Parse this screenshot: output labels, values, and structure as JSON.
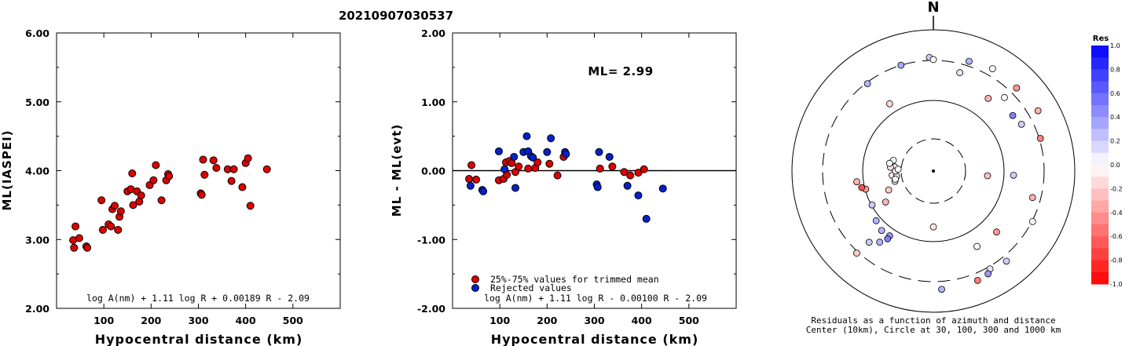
{
  "title": "20210907030537",
  "colors": {
    "red": "#dd0000",
    "blue": "#0022cc",
    "edge": "#000000"
  },
  "chart_data": [
    {
      "type": "scatter",
      "xlabel": "Hypocentral distance (km)",
      "ylabel": "ML(IASPEI)",
      "xlim": [
        0,
        600
      ],
      "ylim": [
        2.0,
        6.0
      ],
      "xticks": [
        "100",
        "200",
        "300",
        "400",
        "500"
      ],
      "yticks": [
        "2.00",
        "3.00",
        "4.00",
        "5.00",
        "6.00"
      ],
      "formula": "log A(nm) + 1.11 log R + 0.00189 R - 2.09",
      "points": [
        [
          35,
          2.99
        ],
        [
          37,
          2.88
        ],
        [
          40,
          3.19
        ],
        [
          48,
          3.02
        ],
        [
          63,
          2.9
        ],
        [
          65,
          2.88
        ],
        [
          95,
          3.57
        ],
        [
          98,
          3.14
        ],
        [
          110,
          3.22
        ],
        [
          115,
          3.19
        ],
        [
          118,
          3.44
        ],
        [
          123,
          3.49
        ],
        [
          130,
          3.14
        ],
        [
          133,
          3.33
        ],
        [
          136,
          3.41
        ],
        [
          150,
          3.7
        ],
        [
          157,
          3.73
        ],
        [
          160,
          3.96
        ],
        [
          162,
          3.5
        ],
        [
          170,
          3.7
        ],
        [
          175,
          3.55
        ],
        [
          179,
          3.64
        ],
        [
          197,
          3.79
        ],
        [
          205,
          3.86
        ],
        [
          210,
          4.08
        ],
        [
          222,
          3.57
        ],
        [
          232,
          3.86
        ],
        [
          236,
          3.95
        ],
        [
          238,
          3.92
        ],
        [
          305,
          3.67
        ],
        [
          307,
          3.65
        ],
        [
          310,
          4.16
        ],
        [
          313,
          3.94
        ],
        [
          332,
          4.15
        ],
        [
          338,
          4.04
        ],
        [
          362,
          4.02
        ],
        [
          370,
          3.85
        ],
        [
          375,
          4.02
        ],
        [
          393,
          3.76
        ],
        [
          400,
          4.11
        ],
        [
          405,
          4.18
        ],
        [
          410,
          3.49
        ],
        [
          445,
          4.02
        ]
      ]
    },
    {
      "type": "scatter",
      "xlabel": "Hypocentral distance (km)",
      "ylabel": "ML - ML(evt)",
      "xlim": [
        0,
        600
      ],
      "ylim": [
        -2.0,
        2.0
      ],
      "xticks": [
        "100",
        "200",
        "300",
        "400",
        "500"
      ],
      "yticks": [
        "-2.00",
        "-1.00",
        "0.00",
        "1.00",
        "2.00"
      ],
      "ml_label": "ML= 2.99",
      "zero_line": 0,
      "formula": "log A(nm) + 1.11 log R - 0.00100 R - 2.09",
      "series": [
        {
          "name": "25%-75% values for trimmed mean",
          "color": "red",
          "points": [
            [
              35,
              -0.12
            ],
            [
              40,
              0.08
            ],
            [
              50,
              -0.13
            ],
            [
              98,
              -0.14
            ],
            [
              108,
              -0.12
            ],
            [
              113,
              0.12
            ],
            [
              115,
              -0.06
            ],
            [
              120,
              0.14
            ],
            [
              125,
              0.11
            ],
            [
              133,
              -0.02
            ],
            [
              140,
              0.06
            ],
            [
              160,
              0.03
            ],
            [
              175,
              0.04
            ],
            [
              180,
              0.12
            ],
            [
              205,
              0.1
            ],
            [
              222,
              -0.07
            ],
            [
              235,
              0.2
            ],
            [
              312,
              0.03
            ],
            [
              338,
              0.06
            ],
            [
              363,
              -0.02
            ],
            [
              376,
              -0.07
            ],
            [
              393,
              -0.03
            ],
            [
              405,
              0.02
            ]
          ]
        },
        {
          "name": "Rejected values",
          "color": "blue",
          "points": [
            [
              38,
              -0.22
            ],
            [
              63,
              -0.28
            ],
            [
              65,
              -0.3
            ],
            [
              98,
              0.28
            ],
            [
              110,
              0.02
            ],
            [
              130,
              0.2
            ],
            [
              133,
              -0.25
            ],
            [
              150,
              0.27
            ],
            [
              157,
              0.5
            ],
            [
              160,
              0.28
            ],
            [
              166,
              0.21
            ],
            [
              170,
              0.19
            ],
            [
              200,
              0.27
            ],
            [
              208,
              0.47
            ],
            [
              238,
              0.27
            ],
            [
              240,
              0.24
            ],
            [
              305,
              -0.2
            ],
            [
              307,
              -0.24
            ],
            [
              310,
              0.27
            ],
            [
              332,
              0.2
            ],
            [
              370,
              -0.22
            ],
            [
              393,
              -0.36
            ],
            [
              410,
              -0.7
            ],
            [
              445,
              -0.26
            ]
          ]
        }
      ]
    },
    {
      "type": "polar-scatter",
      "compass_label": "N",
      "caption_line1": "Residuals as a function of azimuth and distance",
      "caption_line2": "Center (10km), Circle at 30, 100, 300 and 1000 km",
      "colorbar": {
        "title": "Res",
        "ticks": [
          "1.0",
          "0.8",
          "0.6",
          "0.4",
          "0.2",
          "0.0",
          "-0.2",
          "-0.4",
          "-0.6",
          "-0.8",
          "-1.0"
        ]
      },
      "points": [
        {
          "az": 358,
          "dist": 338,
          "res": 0.2
        },
        {
          "az": 0,
          "dist": 310,
          "res": 0.0
        },
        {
          "az": 15,
          "dist": 236,
          "res": 0.1
        },
        {
          "az": 18,
          "dist": 362,
          "res": 0.3
        },
        {
          "az": 30,
          "dist": 405,
          "res": 0.0
        },
        {
          "az": 37,
          "dist": 175,
          "res": -0.3
        },
        {
          "az": 44,
          "dist": 238,
          "res": 0.0
        },
        {
          "az": 45,
          "dist": 393,
          "res": -0.4
        },
        {
          "az": 55,
          "dist": 205,
          "res": 0.5
        },
        {
          "az": 60,
          "dist": 445,
          "res": -0.3
        },
        {
          "az": 62,
          "dist": 222,
          "res": 0.2
        },
        {
          "az": 73,
          "dist": 313,
          "res": -0.5
        },
        {
          "az": 93,
          "dist": 130,
          "res": 0.2
        },
        {
          "az": 105,
          "dist": 240,
          "res": -0.3
        },
        {
          "az": 117,
          "dist": 307,
          "res": 0.0
        },
        {
          "az": 150,
          "dist": 157,
          "res": 0.0
        },
        {
          "az": 134,
          "dist": 160,
          "res": -0.4
        },
        {
          "az": 180,
          "dist": 63,
          "res": -0.1
        },
        {
          "az": 141,
          "dist": 370,
          "res": 0.2
        },
        {
          "az": 150,
          "dist": 330,
          "res": 0.1
        },
        {
          "az": 152,
          "dist": 376,
          "res": 0.4
        },
        {
          "az": 158,
          "dist": 400,
          "res": -0.5
        },
        {
          "az": 176,
          "dist": 410,
          "res": 0.3
        },
        {
          "az": 214,
          "dist": 123,
          "res": 0.4
        },
        {
          "az": 214,
          "dist": 136,
          "res": 0.5
        },
        {
          "az": 221,
          "dist": 125,
          "res": 0.3
        },
        {
          "az": 217,
          "dist": 166,
          "res": 0.3
        },
        {
          "az": 229,
          "dist": 115,
          "res": 0.3
        },
        {
          "az": 222,
          "dist": 200,
          "res": 0.2
        },
        {
          "az": 223,
          "dist": 320,
          "res": -0.2
        },
        {
          "az": 237,
          "dist": 65,
          "res": -0.3
        },
        {
          "az": 241,
          "dist": 98,
          "res": 0.2
        },
        {
          "az": 247,
          "dist": 50,
          "res": -0.2
        },
        {
          "az": 255,
          "dist": 38,
          "res": 0.1
        },
        {
          "az": 264,
          "dist": 40,
          "res": -0.1
        },
        {
          "az": 262,
          "dist": 35,
          "res": 0.1
        },
        {
          "az": 258,
          "dist": 37,
          "res": 0.0
        },
        {
          "az": 276,
          "dist": 37,
          "res": 0.0
        },
        {
          "az": 285,
          "dist": 40,
          "res": 0.0
        },
        {
          "az": 275,
          "dist": 42,
          "res": -0.1
        },
        {
          "az": 270,
          "dist": 36,
          "res": -0.1
        },
        {
          "az": 255,
          "dist": 98,
          "res": -0.4
        },
        {
          "az": 257,
          "dist": 108,
          "res": -0.7
        },
        {
          "az": 262,
          "dist": 120,
          "res": -0.3
        },
        {
          "az": 280,
          "dist": 44,
          "res": 0.0
        },
        {
          "az": 273,
          "dist": 33,
          "res": 0.0
        },
        {
          "az": 95,
          "dist": 60,
          "res": -0.25
        },
        {
          "az": 327,
          "dist": 130,
          "res": -0.15
        },
        {
          "az": 323,
          "dist": 290,
          "res": 0.3
        },
        {
          "az": 343,
          "dist": 300,
          "res": 0.35
        }
      ]
    }
  ]
}
